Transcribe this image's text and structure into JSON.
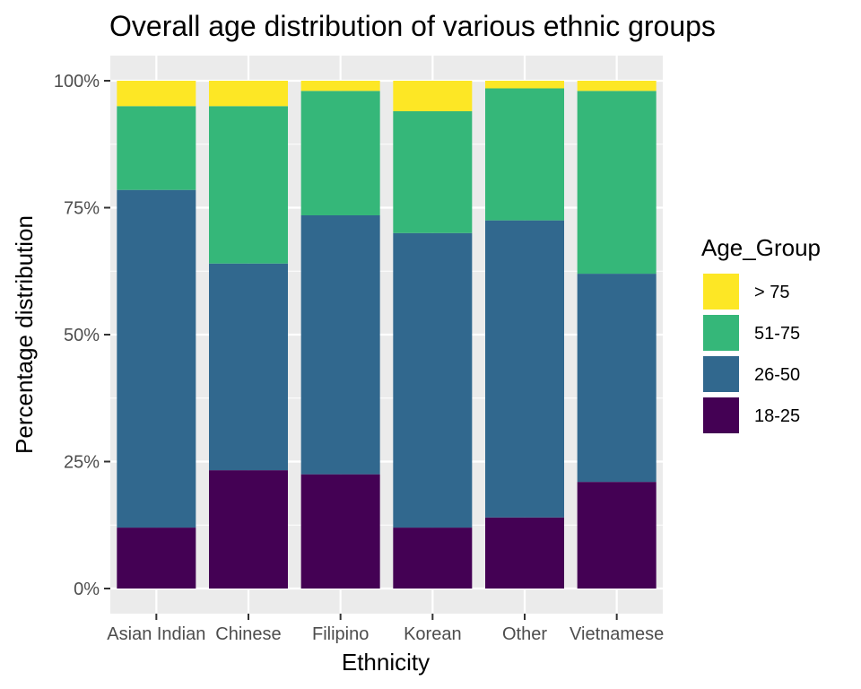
{
  "chart_data": {
    "type": "bar",
    "stacked": true,
    "title": "Overall age distribution of various ethnic groups",
    "xlabel": "Ethnicity",
    "ylabel": "Percentage distribution",
    "ylim": [
      0,
      1
    ],
    "y_ticks": [
      0,
      0.25,
      0.5,
      0.75,
      1.0
    ],
    "y_tick_labels": [
      "0%",
      "25%",
      "50%",
      "75%",
      "100%"
    ],
    "grid": true,
    "legend_position": "right",
    "legend_title": "Age_Group",
    "categories": [
      "Asian Indian",
      "Chinese",
      "Filipino",
      "Korean",
      "Other",
      "Vietnamese"
    ],
    "series": [
      {
        "name": "18-25",
        "color": "#440154",
        "values": [
          0.12,
          0.233,
          0.225,
          0.12,
          0.14,
          0.21
        ]
      },
      {
        "name": "26-50",
        "color": "#31688E",
        "values": [
          0.665,
          0.407,
          0.51,
          0.58,
          0.585,
          0.41
        ]
      },
      {
        "name": "51-75",
        "color": "#35B779",
        "values": [
          0.165,
          0.31,
          0.245,
          0.24,
          0.26,
          0.36
        ]
      },
      {
        "name": "> 75",
        "color": "#FDE725",
        "values": [
          0.05,
          0.05,
          0.02,
          0.06,
          0.015,
          0.02
        ]
      }
    ],
    "legend_order": [
      "> 75",
      "51-75",
      "26-50",
      "18-25"
    ]
  },
  "colors": {
    "panel_background": "#EBEBEB",
    "grid_major": "#FFFFFF",
    "tick_text": "#4D4D4D",
    "tick_mark": "#333333"
  }
}
